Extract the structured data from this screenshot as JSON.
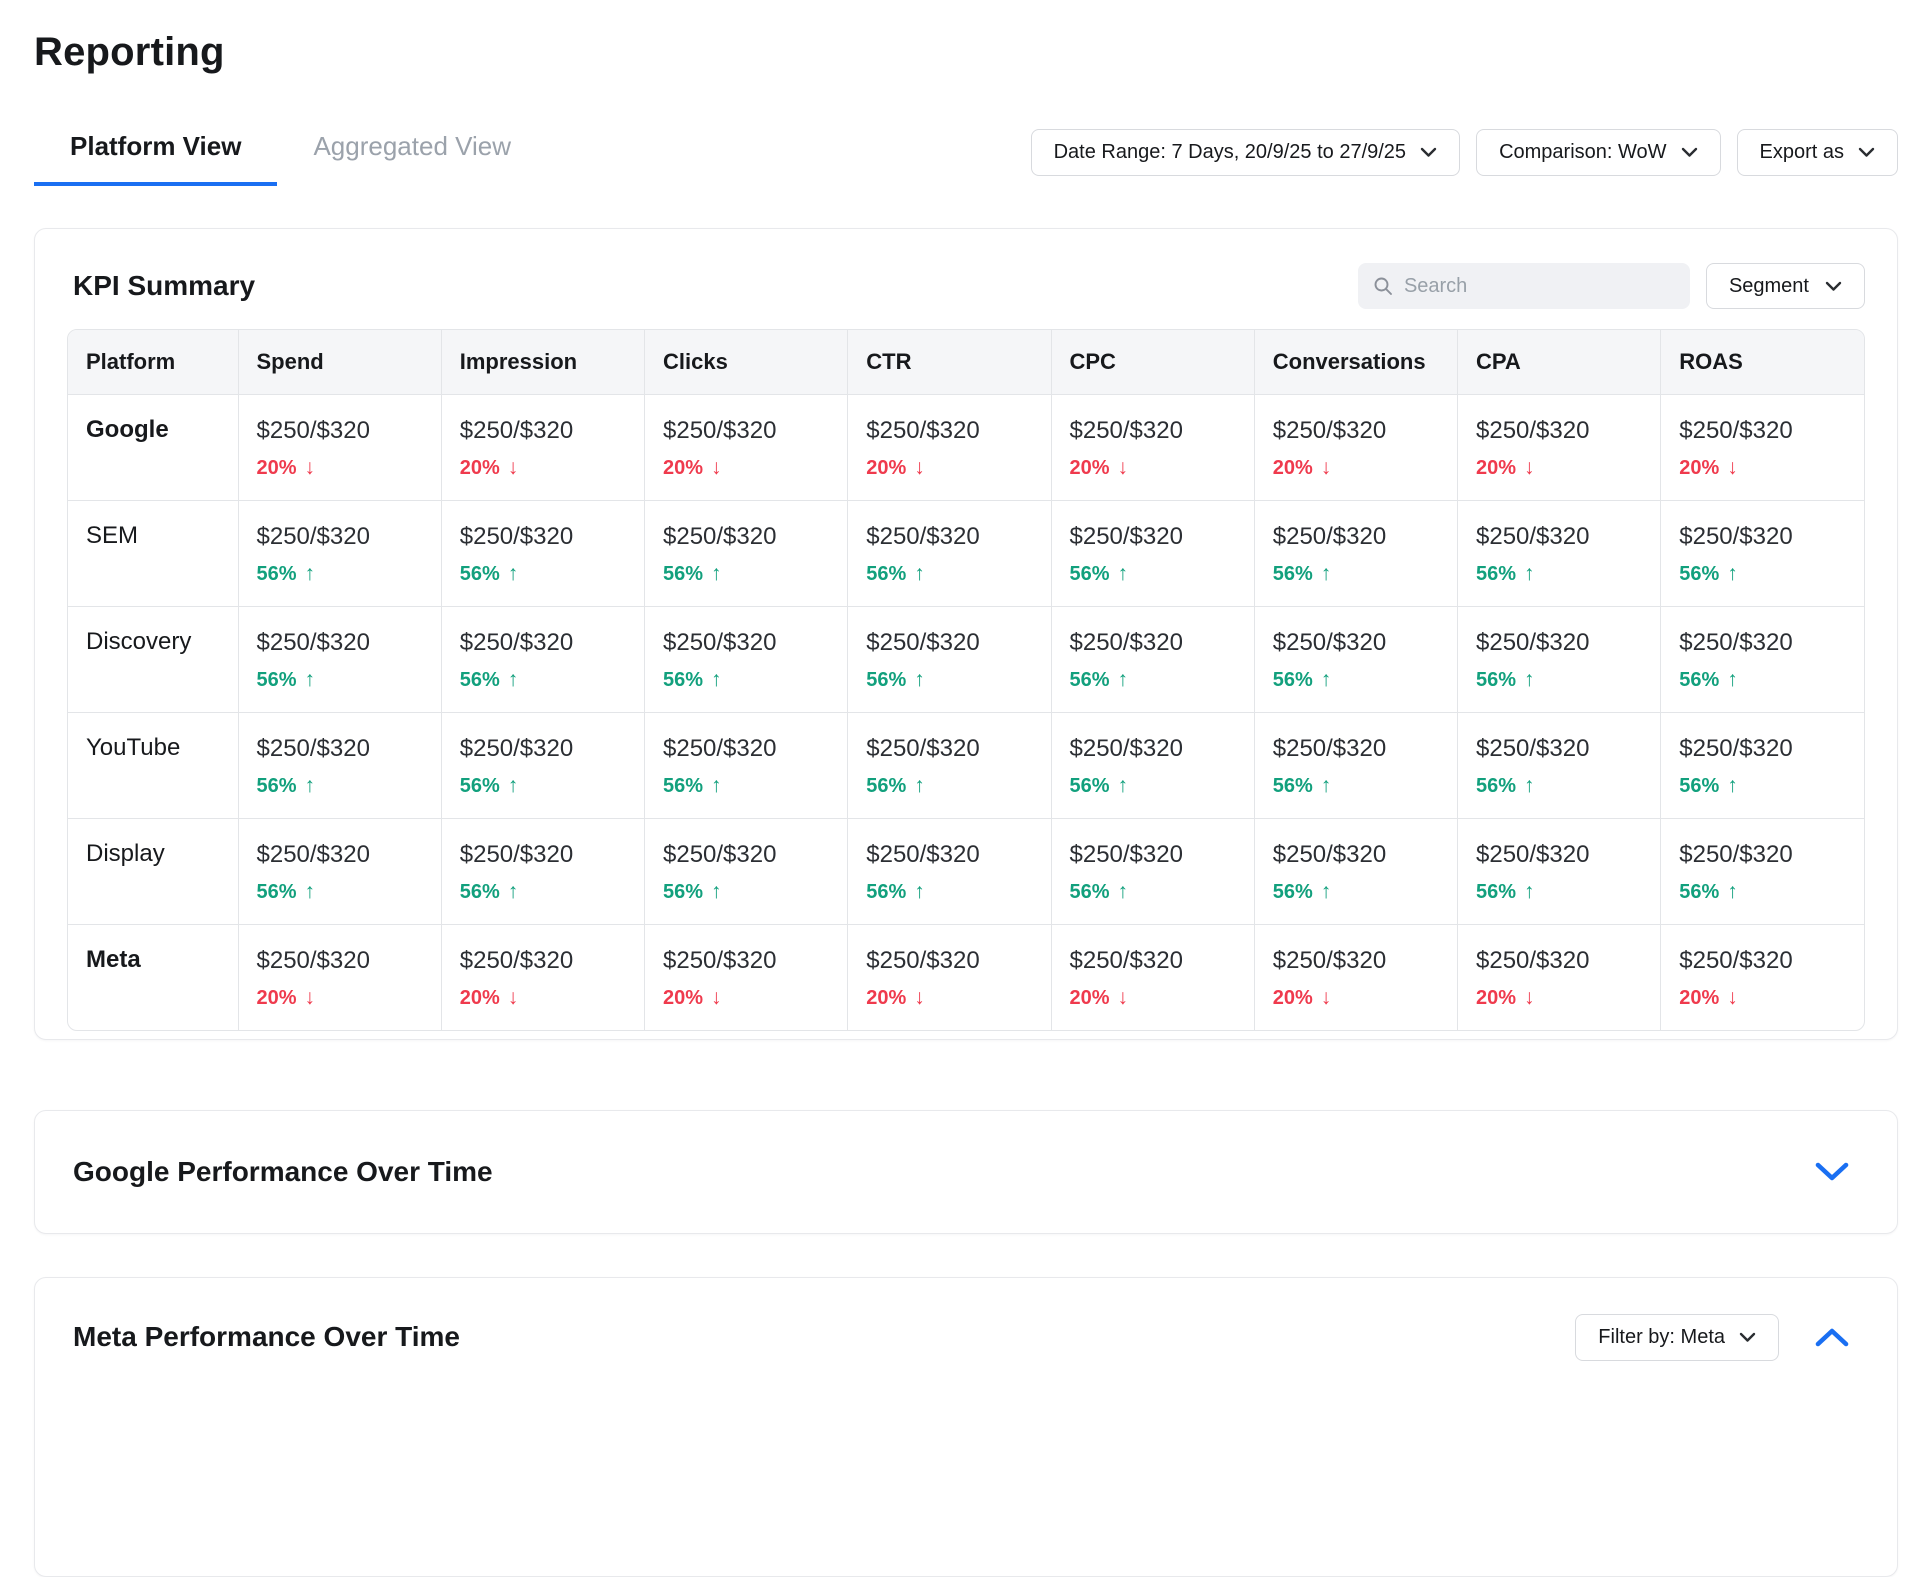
{
  "page": {
    "title": "Reporting"
  },
  "tabs": [
    {
      "label": "Platform View",
      "active": true
    },
    {
      "label": "Aggregated View",
      "active": false
    }
  ],
  "toolbar": {
    "date_range_label": "Date Range: 7 Days, 20/9/25 to 27/9/25",
    "comparison_label": "Comparison: WoW",
    "export_label": "Export as"
  },
  "kpi_summary": {
    "title": "KPI Summary",
    "search": {
      "placeholder": "Search",
      "value": ""
    },
    "segment_label": "Segment",
    "table": {
      "columns": [
        "Platform",
        "Spend",
        "Impression",
        "Clicks",
        "CTR",
        "CPC",
        "Conversations",
        "CPA",
        "ROAS"
      ],
      "rows": [
        {
          "platform": "Google",
          "emphasis": true,
          "value": "$250/$320",
          "change": "20%",
          "direction": "down"
        },
        {
          "platform": "SEM",
          "emphasis": false,
          "value": "$250/$320",
          "change": "56%",
          "direction": "up"
        },
        {
          "platform": "Discovery",
          "emphasis": false,
          "value": "$250/$320",
          "change": "56%",
          "direction": "up"
        },
        {
          "platform": "YouTube",
          "emphasis": false,
          "value": "$250/$320",
          "change": "56%",
          "direction": "up"
        },
        {
          "platform": "Display",
          "emphasis": false,
          "value": "$250/$320",
          "change": "56%",
          "direction": "up"
        },
        {
          "platform": "Meta",
          "emphasis": true,
          "value": "$250/$320",
          "change": "20%",
          "direction": "down"
        }
      ]
    }
  },
  "sections": [
    {
      "title": "Google Performance Over Time",
      "collapsed": true
    },
    {
      "title": "Meta Performance Over Time",
      "collapsed": false,
      "filter_label": "Filter by: Meta"
    }
  ],
  "icons": {
    "up": "↑",
    "down": "↓"
  },
  "colors": {
    "accent_blue": "#1a6ff2",
    "positive": "#12a07d",
    "negative": "#ef3a4d"
  }
}
